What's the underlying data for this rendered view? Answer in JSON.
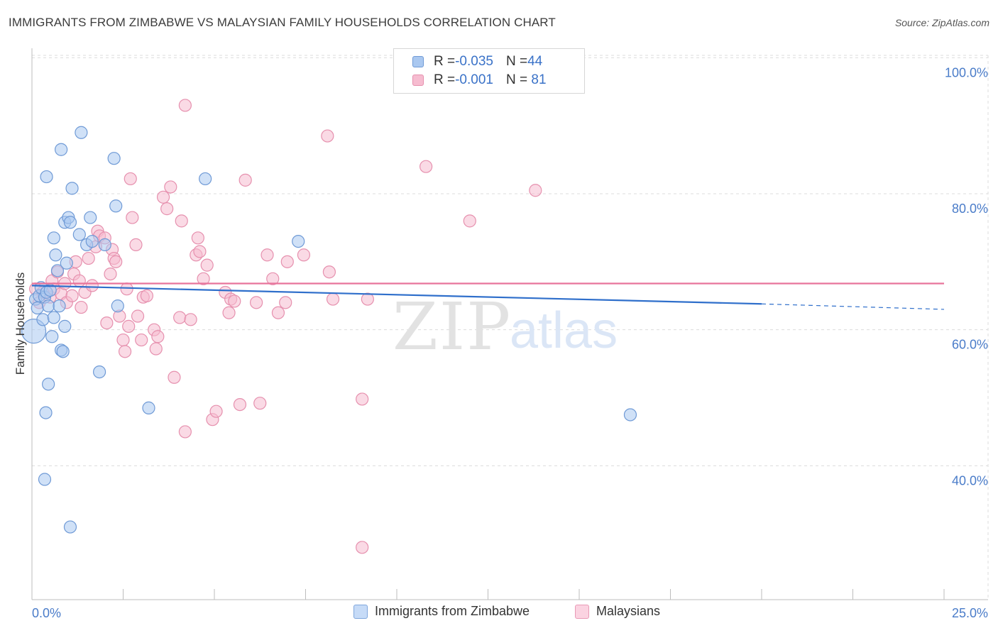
{
  "title": "IMMIGRANTS FROM ZIMBABWE VS MALAYSIAN FAMILY HOUSEHOLDS CORRELATION CHART",
  "source": "Source: ZipAtlas.com",
  "watermark": {
    "zip": "ZIP",
    "atlas": "atlas"
  },
  "colors": {
    "blue_fill": "#aac8f0",
    "blue_stroke": "#6f9ad6",
    "blue_line": "#2f6fcb",
    "pink_fill": "#f6bcd0",
    "pink_stroke": "#e690ae",
    "pink_line": "#e8739b",
    "grid": "#dcdcdc",
    "tick_text": "#4a7cc9"
  },
  "legend_top": [
    {
      "r_label": "R = ",
      "r_value": "-0.035",
      "n_label": "N = ",
      "n_value": "44"
    },
    {
      "r_label": "R = ",
      "r_value": "-0.001",
      "n_label": "N = ",
      "n_value": " 81"
    }
  ],
  "chart_data": {
    "type": "scatter",
    "title": "IMMIGRANTS FROM ZIMBABWE VS MALAYSIAN FAMILY HOUSEHOLDS CORRELATION CHART",
    "xlabel": "",
    "ylabel": "Family Households",
    "xlim": [
      0,
      25
    ],
    "ylim": [
      20,
      104
    ],
    "x_tick_labels": [
      "0.0%",
      "25.0%"
    ],
    "y_ticks": [
      {
        "value": 100,
        "label": "100.0%"
      },
      {
        "value": 80,
        "label": "80.0%"
      },
      {
        "value": 60,
        "label": "60.0%"
      },
      {
        "value": 40,
        "label": "40.0%"
      }
    ],
    "series": [
      {
        "name": "Immigrants from Zimbabwe",
        "color": "blue",
        "r": -0.035,
        "n": 44,
        "trend": {
          "x0": 0,
          "y0": 66.5,
          "x1": 20,
          "y1": 63.8,
          "dash_to_x": 25,
          "dash_to_y": 63.0
        },
        "points": [
          [
            0.05,
            59.8
          ],
          [
            0.1,
            64.5
          ],
          [
            0.15,
            63.2
          ],
          [
            0.2,
            65.0
          ],
          [
            0.25,
            66.2
          ],
          [
            0.3,
            61.5
          ],
          [
            0.35,
            64.8
          ],
          [
            0.4,
            65.5
          ],
          [
            0.45,
            63.5
          ],
          [
            0.5,
            65.8
          ],
          [
            0.6,
            61.8
          ],
          [
            0.55,
            59.0
          ],
          [
            0.7,
            68.7
          ],
          [
            0.8,
            57.0
          ],
          [
            0.85,
            56.8
          ],
          [
            0.9,
            60.5
          ],
          [
            0.75,
            63.5
          ],
          [
            0.6,
            73.5
          ],
          [
            0.65,
            71.0
          ],
          [
            0.8,
            86.5
          ],
          [
            0.9,
            75.8
          ],
          [
            1.0,
            76.5
          ],
          [
            1.05,
            75.8
          ],
          [
            1.1,
            80.8
          ],
          [
            1.3,
            74.0
          ],
          [
            1.35,
            89.0
          ],
          [
            1.5,
            72.5
          ],
          [
            1.6,
            76.5
          ],
          [
            1.65,
            73.0
          ],
          [
            1.85,
            53.8
          ],
          [
            2.0,
            72.5
          ],
          [
            2.25,
            85.2
          ],
          [
            2.3,
            78.2
          ],
          [
            2.35,
            63.5
          ],
          [
            0.4,
            82.5
          ],
          [
            0.45,
            52.0
          ],
          [
            0.38,
            47.8
          ],
          [
            0.35,
            38.0
          ],
          [
            1.05,
            31.0
          ],
          [
            3.2,
            48.5
          ],
          [
            4.75,
            82.2
          ],
          [
            7.3,
            73.0
          ],
          [
            16.4,
            47.5
          ],
          [
            0.95,
            69.8
          ]
        ]
      },
      {
        "name": "Malaysians",
        "color": "pink",
        "r": -0.001,
        "n": 81,
        "trend": {
          "x0": 0,
          "y0": 66.8,
          "x1": 25,
          "y1": 66.8
        },
        "points": [
          [
            0.1,
            66.0
          ],
          [
            0.2,
            64.0
          ],
          [
            0.3,
            65.5
          ],
          [
            0.5,
            64.8
          ],
          [
            0.55,
            67.2
          ],
          [
            0.6,
            66.0
          ],
          [
            0.7,
            68.5
          ],
          [
            0.8,
            65.3
          ],
          [
            0.9,
            66.8
          ],
          [
            0.95,
            64.0
          ],
          [
            1.1,
            65.0
          ],
          [
            1.15,
            68.2
          ],
          [
            1.2,
            70.0
          ],
          [
            1.3,
            67.2
          ],
          [
            1.35,
            63.3
          ],
          [
            1.45,
            65.5
          ],
          [
            1.55,
            70.5
          ],
          [
            1.65,
            66.5
          ],
          [
            1.75,
            72.2
          ],
          [
            1.8,
            74.5
          ],
          [
            1.85,
            73.8
          ],
          [
            2.0,
            73.5
          ],
          [
            2.05,
            61.0
          ],
          [
            2.15,
            68.2
          ],
          [
            2.2,
            71.8
          ],
          [
            2.25,
            70.5
          ],
          [
            2.3,
            70.0
          ],
          [
            2.4,
            62.0
          ],
          [
            2.5,
            58.5
          ],
          [
            2.55,
            56.8
          ],
          [
            2.6,
            66.0
          ],
          [
            2.65,
            60.5
          ],
          [
            2.7,
            82.2
          ],
          [
            2.75,
            76.5
          ],
          [
            2.85,
            72.5
          ],
          [
            2.9,
            62.0
          ],
          [
            3.0,
            58.5
          ],
          [
            3.05,
            64.8
          ],
          [
            3.15,
            65.0
          ],
          [
            3.35,
            60.0
          ],
          [
            3.4,
            57.2
          ],
          [
            3.45,
            59.0
          ],
          [
            3.6,
            79.5
          ],
          [
            3.7,
            77.8
          ],
          [
            3.8,
            81.0
          ],
          [
            3.9,
            53.0
          ],
          [
            4.05,
            61.8
          ],
          [
            4.1,
            76.0
          ],
          [
            4.2,
            93.0
          ],
          [
            4.35,
            61.5
          ],
          [
            4.5,
            71.0
          ],
          [
            4.55,
            73.5
          ],
          [
            4.6,
            71.5
          ],
          [
            4.7,
            67.5
          ],
          [
            4.8,
            69.5
          ],
          [
            4.95,
            46.8
          ],
          [
            5.05,
            48.0
          ],
          [
            5.3,
            65.5
          ],
          [
            5.4,
            62.5
          ],
          [
            5.45,
            64.5
          ],
          [
            5.55,
            64.2
          ],
          [
            5.7,
            49.0
          ],
          [
            5.85,
            82.0
          ],
          [
            6.15,
            64.0
          ],
          [
            6.25,
            49.2
          ],
          [
            6.45,
            71.0
          ],
          [
            6.6,
            67.5
          ],
          [
            6.75,
            62.5
          ],
          [
            6.95,
            64.0
          ],
          [
            7.0,
            70.0
          ],
          [
            7.45,
            71.0
          ],
          [
            8.1,
            88.5
          ],
          [
            8.15,
            68.5
          ],
          [
            8.25,
            64.5
          ],
          [
            9.05,
            49.8
          ],
          [
            9.05,
            28.0
          ],
          [
            9.2,
            64.5
          ],
          [
            10.8,
            84.0
          ],
          [
            12.0,
            76.0
          ],
          [
            13.8,
            80.5
          ],
          [
            4.2,
            45.0
          ]
        ]
      }
    ]
  },
  "legend_bottom": [
    {
      "label": "Immigrants from Zimbabwe"
    },
    {
      "label": "Malaysians"
    }
  ]
}
